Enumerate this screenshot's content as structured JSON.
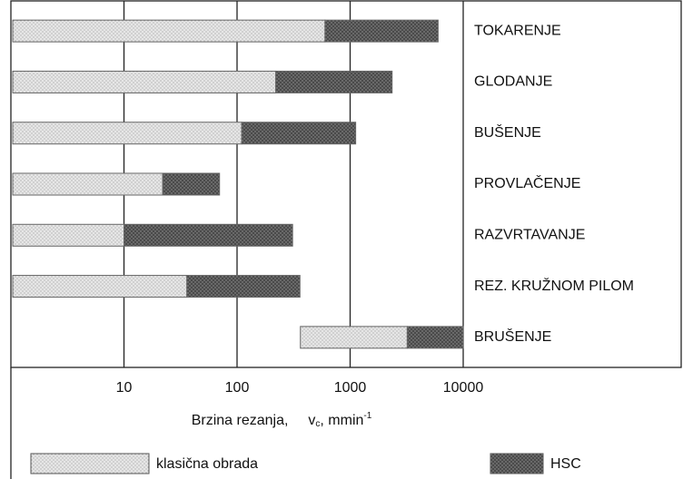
{
  "chart_data": {
    "type": "floating-bar",
    "categories": [
      "TOKARENJE",
      "GLODANJE",
      "BUŠENJE",
      "PROVLAČENJE",
      "RAZVRTAVANJE",
      "REZ. KRUŽNOM PILOM",
      "BRUŠENJE"
    ],
    "series": [
      {
        "name": "klasična obrada",
        "color": "#e6e6e6",
        "low": [
          1,
          1,
          1,
          1,
          1,
          1,
          350
        ],
        "high": [
          600,
          220,
          110,
          22,
          10,
          36,
          3200
        ]
      },
      {
        "name": "HSC",
        "color": "#4a4a4a",
        "high": [
          6000,
          2350,
          1120,
          70,
          310,
          360,
          10000
        ]
      }
    ],
    "x_label": {
      "text": "Brzina rezanja,",
      "symbol": "v",
      "symbol_sub": "c",
      "unit": ", mmin",
      "unit_sup": "-1"
    },
    "xlim": [
      1,
      10000
    ],
    "xticks": [
      10,
      100,
      1000,
      10000
    ],
    "log_x": true,
    "grid": true
  }
}
